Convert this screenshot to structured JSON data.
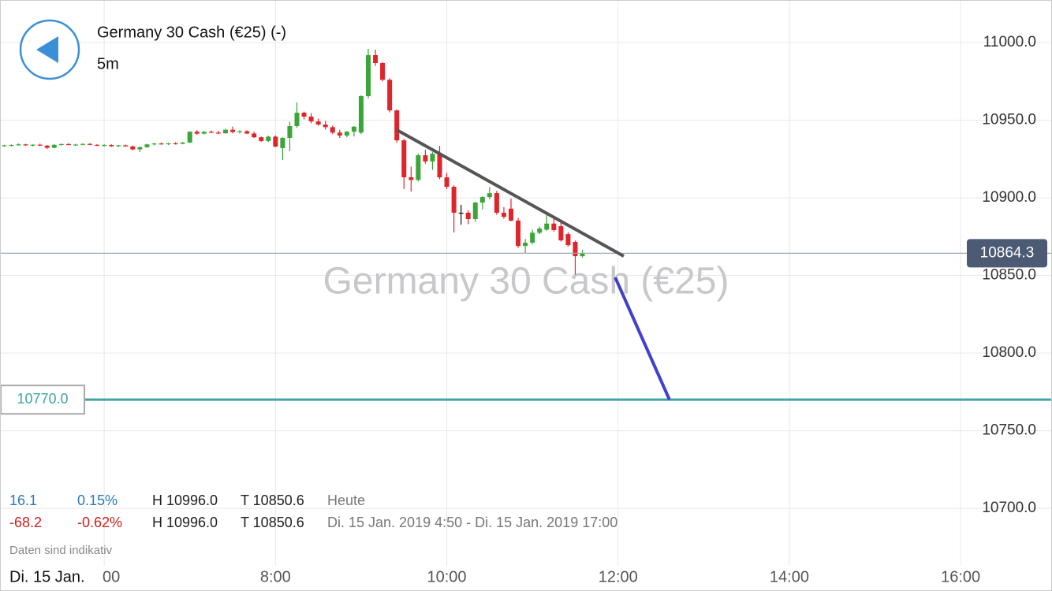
{
  "header": {
    "title": "Germany 30 Cash (€25) (-)",
    "interval": "5m"
  },
  "watermark": "Germany 30 Cash (€25)",
  "chart_data": {
    "type": "candlestick",
    "x": [
      "4:50",
      "4:55",
      "5:00",
      "5:05",
      "5:10",
      "5:15",
      "5:20",
      "5:25",
      "5:30",
      "5:35",
      "5:40",
      "5:45",
      "5:50",
      "5:55",
      "6:00",
      "6:05",
      "6:10",
      "6:15",
      "6:20",
      "6:25",
      "6:30",
      "6:35",
      "6:40",
      "6:45",
      "6:50",
      "6:55",
      "7:00",
      "7:05",
      "7:10",
      "7:15",
      "7:20",
      "7:25",
      "7:30",
      "7:35",
      "7:40",
      "7:45",
      "7:50",
      "7:55",
      "8:00",
      "8:05",
      "8:10",
      "8:15",
      "8:20",
      "8:25",
      "8:30",
      "8:35",
      "8:40",
      "8:45",
      "8:50",
      "8:55",
      "9:00",
      "9:05",
      "9:10",
      "9:15",
      "9:20",
      "9:25",
      "9:30",
      "9:35",
      "9:40",
      "9:45",
      "9:50",
      "9:55",
      "10:00",
      "10:05",
      "10:10",
      "10:15",
      "10:20",
      "10:25",
      "10:30",
      "10:35",
      "10:40",
      "10:45",
      "10:50",
      "10:55",
      "11:00",
      "11:05",
      "11:10",
      "11:15",
      "11:20",
      "11:25",
      "11:30",
      "11:35"
    ],
    "open": [
      10933.5,
      10933.8,
      10934,
      10934.4,
      10933.9,
      10934.2,
      10933.6,
      10932.2,
      10934.1,
      10934.6,
      10934,
      10934.3,
      10934.7,
      10934.1,
      10933.7,
      10934,
      10933.2,
      10933.8,
      10933.1,
      10931.2,
      10932.6,
      10934.4,
      10935,
      10934.6,
      10935.1,
      10934.8,
      10935.6,
      10942.6,
      10941.3,
      10942.5,
      10942,
      10941.6,
      10943.8,
      10942.4,
      10942.9,
      10941.4,
      10939,
      10936.6,
      10939.4,
      10932,
      10938.6,
      10946.2,
      10954.8,
      10952.3,
      10949.2,
      10947.2,
      10945.5,
      10942,
      10940.1,
      10942.6,
      10942,
      10965.5,
      10991.9,
      10986.8,
      10976,
      10956.3,
      10937,
      10913.2,
      10911.5,
      10927.4,
      10923.4,
      10928.4,
      10913.2,
      10907.1,
      10890.4,
      10890.4,
      10886.3,
      10896.9,
      10900.5,
      10903,
      10890.4,
      10893,
      10885.3,
      10869,
      10871.1,
      10877.5,
      10879.5,
      10883.4,
      10881.7,
      10876.6,
      10871.6,
      10862.4
    ],
    "high": [
      10934.2,
      10934.5,
      10935,
      10934.8,
      10934.6,
      10934.9,
      10934,
      10934.5,
      10935,
      10935.2,
      10934.8,
      10935.1,
      10935.2,
      10934.6,
      10934.5,
      10934.5,
      10934,
      10934.3,
      10933.6,
      10933,
      10934.8,
      10935.3,
      10935.6,
      10935.4,
      10935.8,
      10936,
      10942.8,
      10943.5,
      10943,
      10943.4,
      10943.2,
      10944.5,
      10945.9,
      10943.6,
      10943.5,
      10942.6,
      10939.5,
      10940,
      10940.2,
      10939,
      10949,
      10961.4,
      10955.5,
      10954.5,
      10951,
      10949.5,
      10946.5,
      10943.8,
      10943,
      10946.2,
      10966,
      10996,
      10995.4,
      10987.5,
      10977,
      10957,
      10938,
      10920,
      10928.5,
      10931,
      10929.5,
      10933.5,
      10916,
      10908,
      10895.5,
      10892,
      10897.5,
      10901,
      10907,
      10904.5,
      10894,
      10899.5,
      10887,
      10873.5,
      10879.5,
      10881.5,
      10890.6,
      10887.3,
      10884,
      10877.8,
      10872.5,
      10866.5
    ],
    "low": [
      10933,
      10933.2,
      10933.6,
      10933.5,
      10933,
      10933.4,
      10931.5,
      10932,
      10933.6,
      10933.8,
      10933.4,
      10933.9,
      10933.8,
      10933.3,
      10933.1,
      10932.8,
      10932.6,
      10932.9,
      10930.5,
      10929.5,
      10932.2,
      10933.8,
      10934.2,
      10934,
      10934.3,
      10934.5,
      10935.2,
      10940.5,
      10940.8,
      10941.7,
      10941,
      10941.2,
      10941.5,
      10941.4,
      10941,
      10938.5,
      10936,
      10936,
      10932.5,
      10924.4,
      10930,
      10945,
      10950.5,
      10948,
      10946.5,
      10944,
      10941,
      10938.6,
      10939,
      10939.5,
      10941,
      10964,
      10985,
      10975,
      10955,
      10935.5,
      10905.6,
      10904.1,
      10910.5,
      10922,
      10918,
      10912,
      10905.5,
      10877.7,
      10882.7,
      10883,
      10884.5,
      10892.5,
      10899,
      10889,
      10886.5,
      10884.8,
      10867.8,
      10864,
      10870.2,
      10876.5,
      10878.6,
      10878.2,
      10871.8,
      10868.5,
      10850.6,
      10861.4
    ],
    "close": [
      10933.8,
      10934,
      10934.4,
      10933.9,
      10934.2,
      10933.6,
      10932.2,
      10934.1,
      10934.6,
      10934,
      10934.3,
      10934.7,
      10934.1,
      10933.7,
      10934,
      10933.2,
      10933.8,
      10933.1,
      10931.2,
      10932.6,
      10934.4,
      10935,
      10934.6,
      10935.1,
      10934.8,
      10935.6,
      10942.6,
      10941.3,
      10942.5,
      10942,
      10941.6,
      10943.8,
      10942.4,
      10942.9,
      10941.4,
      10939,
      10936.6,
      10939.4,
      10933,
      10938.6,
      10946.2,
      10954.8,
      10952.3,
      10949.2,
      10947.2,
      10945.5,
      10942,
      10940.1,
      10942.6,
      10945.8,
      10965.5,
      10991.9,
      10986.8,
      10976,
      10956.3,
      10937,
      10913.2,
      10911.5,
      10927.4,
      10923.4,
      10928.4,
      10913.2,
      10907.1,
      10890.4,
      10890.4,
      10886.3,
      10896.9,
      10900.5,
      10903,
      10890.4,
      10887.8,
      10885.3,
      10869,
      10871.1,
      10877.5,
      10880.2,
      10883.4,
      10879.2,
      10872.6,
      10869.5,
      10862.4,
      10864.3
    ],
    "up_color": "#3aa63a",
    "down_color": "#e0242b",
    "flat_color": "#111111",
    "xlim": [
      "4:47",
      "17:04"
    ],
    "xticks": [
      {
        "value": "6:00",
        "label": "00"
      },
      "8:00",
      "10:00",
      "12:00",
      "14:00",
      "16:00"
    ],
    "ylim": [
      10663,
      11027.4
    ],
    "yticks": [
      {
        "value": 10700,
        "label": "10700.0"
      },
      {
        "value": 10750,
        "label": "10750.0"
      },
      {
        "value": 10800,
        "label": "10800.0"
      },
      {
        "value": 10850,
        "label": "10850.0"
      },
      {
        "value": 10900,
        "label": "10900.0"
      },
      {
        "value": 10950,
        "label": "10950.0"
      },
      {
        "value": 11000,
        "label": "11000.0"
      }
    ],
    "grid": true,
    "last_price": 10864.3,
    "alert": {
      "value": 10770,
      "label": "10770.0",
      "color": "#3fa5a5"
    },
    "annotations": [
      {
        "type": "line",
        "color": "#555555",
        "x": [
          "9:25",
          "12:04"
        ],
        "y": [
          10943.7,
          10862.4
        ]
      },
      {
        "type": "line",
        "color": "#4040d0",
        "x": [
          "11:58",
          "12:36"
        ],
        "y": [
          10848.7,
          10770
        ]
      }
    ],
    "date_label": "Di. 15 Jan."
  },
  "stats": [
    [
      "16.1",
      "0.15%",
      "H 10996.0",
      "T 10850.6",
      "Heute"
    ],
    [
      "-68.2",
      "-0.62%",
      "H 10996.0",
      "T 10850.6",
      "Di. 15 Jan. 2019 4:50 - Di. 15 Jan. 2019 17:00"
    ]
  ],
  "note": "Daten sind indikativ"
}
